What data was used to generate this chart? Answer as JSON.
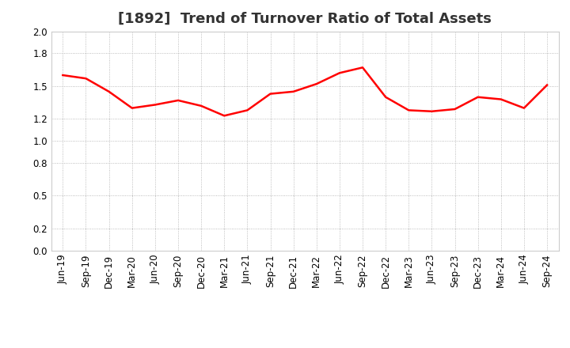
{
  "title": "[1892]  Trend of Turnover Ratio of Total Assets",
  "line_color": "#FF0000",
  "line_width": 1.8,
  "background_color": "#FFFFFF",
  "grid_color": "#AAAAAA",
  "ylim": [
    0.0,
    2.0
  ],
  "yticks": [
    0.0,
    0.2,
    0.5,
    0.8,
    1.0,
    1.2,
    1.5,
    1.8,
    2.0
  ],
  "labels": [
    "Jun-19",
    "Sep-19",
    "Dec-19",
    "Mar-20",
    "Jun-20",
    "Sep-20",
    "Dec-20",
    "Mar-21",
    "Jun-21",
    "Sep-21",
    "Dec-21",
    "Mar-22",
    "Jun-22",
    "Sep-22",
    "Dec-22",
    "Mar-23",
    "Jun-23",
    "Sep-23",
    "Dec-23",
    "Mar-24",
    "Jun-24",
    "Sep-24"
  ],
  "values": [
    1.6,
    1.57,
    1.45,
    1.3,
    1.33,
    1.37,
    1.32,
    1.23,
    1.28,
    1.43,
    1.45,
    1.52,
    1.62,
    1.67,
    1.4,
    1.28,
    1.27,
    1.29,
    1.4,
    1.38,
    1.3,
    1.51
  ],
  "title_fontsize": 13,
  "tick_fontsize": 8.5
}
